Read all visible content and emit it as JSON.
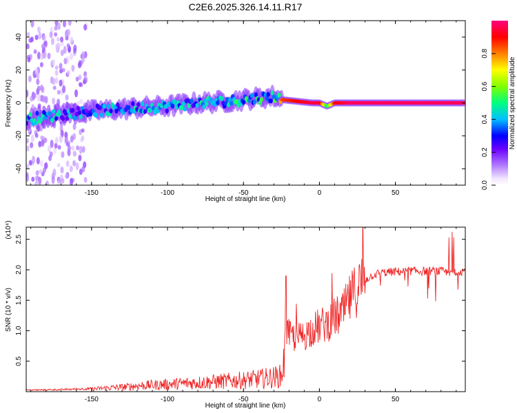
{
  "title": "C2E6.2025.326.14.11.R17",
  "chart_data": [
    {
      "type": "heatmap",
      "title": "C2E6.2025.326.14.11.R17",
      "xlabel": "Height of straight line (km)",
      "ylabel": "Frequency (Hz)",
      "xlim": [
        -193,
        96
      ],
      "ylim": [
        -50,
        50
      ],
      "xticks": [
        -150,
        -100,
        -50,
        0,
        50
      ],
      "xtick_labels": [
        "-150",
        "-100",
        "-50",
        "0",
        "50"
      ],
      "yticks": [
        -40,
        -20,
        0,
        20,
        40
      ],
      "ytick_labels": [
        "-40",
        "-20",
        "0",
        "20",
        "40"
      ],
      "colorbar": {
        "label": "Normalized spectral amplitude",
        "range": [
          0,
          1
        ],
        "ticks": [
          0.0,
          0.2,
          0.4,
          0.6,
          0.8
        ],
        "tick_labels": [
          "0.0",
          "0.2",
          "0.4",
          "0.6",
          "0.8"
        ]
      },
      "ridge": {
        "description_points_x": [
          -193,
          -170,
          -150,
          -120,
          -100,
          -80,
          -60,
          -40,
          -30,
          -25,
          -15,
          -5,
          0,
          5,
          10,
          20,
          50,
          96
        ],
        "frequency_y": [
          -10,
          -7,
          -5,
          -3,
          -2,
          0,
          1,
          3,
          4,
          2,
          1,
          0,
          0,
          -2,
          0,
          0,
          0,
          0
        ],
        "peak_amplitude": [
          0.5,
          0.45,
          0.4,
          0.45,
          0.45,
          0.45,
          0.5,
          0.5,
          0.5,
          0.85,
          0.9,
          0.95,
          0.95,
          0.5,
          0.9,
          0.97,
          0.97,
          0.97
        ]
      }
    },
    {
      "type": "line",
      "title": "",
      "xlabel": "Height of straight line (km)",
      "ylabel": "SNR (10 * v/v)",
      "scale_label": "(x10⁴)",
      "xlim": [
        -193,
        96
      ],
      "ylim": [
        0,
        2.7
      ],
      "xticks": [
        -150,
        -100,
        -50,
        0,
        50
      ],
      "xtick_labels": [
        "-150",
        "-100",
        "-50",
        "0",
        "50"
      ],
      "yticks": [
        0.5,
        1.0,
        1.5,
        2.0,
        2.5
      ],
      "ytick_labels": [
        "0.5",
        "1.0",
        "1.5",
        "2.0",
        "2.5"
      ],
      "series": [
        {
          "name": "SNR",
          "color": "#ee2222",
          "x": [
            -193,
            -170,
            -150,
            -140,
            -130,
            -120,
            -110,
            -100,
            -90,
            -80,
            -70,
            -60,
            -50,
            -40,
            -35,
            -30,
            -25,
            -22,
            -20,
            -15,
            -10,
            -5,
            0,
            5,
            10,
            15,
            20,
            25,
            30,
            35,
            40,
            50,
            60,
            70,
            75,
            80,
            85,
            90,
            96
          ],
          "y": [
            0.03,
            0.04,
            0.06,
            0.09,
            0.11,
            0.14,
            0.16,
            0.18,
            0.2,
            0.22,
            0.24,
            0.26,
            0.28,
            0.31,
            0.33,
            0.35,
            0.38,
            1.05,
            0.95,
            0.9,
            0.95,
            1.05,
            1.1,
            1.15,
            1.25,
            1.3,
            1.55,
            1.75,
            1.9,
            1.98,
            2.02,
            2.04,
            2.05,
            2.05,
            2.05,
            2.05,
            2.02,
            2.05,
            2.05
          ]
        }
      ]
    }
  ]
}
